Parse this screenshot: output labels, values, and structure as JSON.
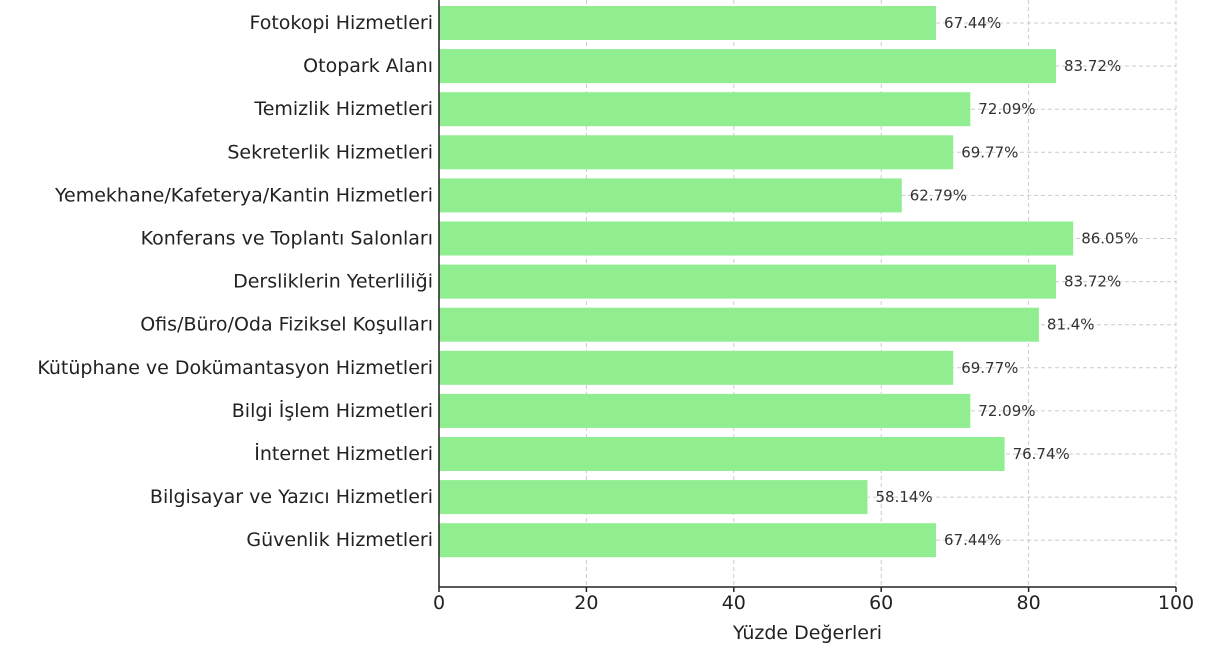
{
  "chart_data": {
    "type": "bar",
    "orientation": "horizontal",
    "categories": [
      "Fotokopi Hizmetleri",
      "Otopark Alanı",
      "Temizlik Hizmetleri",
      "Sekreterlik Hizmetleri",
      "Yemekhane/Kafeterya/Kantin Hizmetleri",
      "Konferans ve Toplantı Salonları",
      "Dersliklerin Yeterliliği",
      "Ofis/Büro/Oda Fiziksel Koşulları",
      "Kütüphane ve Dokümantasyon Hizmetleri",
      "Bilgi İşlem Hizmetleri",
      "İnternet Hizmetleri",
      "Bilgisayar ve Yazıcı Hizmetleri",
      "Güvenlik Hizmetleri"
    ],
    "values": [
      67.44,
      83.72,
      72.09,
      69.77,
      62.79,
      86.05,
      83.72,
      81.4,
      69.77,
      72.09,
      76.74,
      58.14,
      67.44
    ],
    "value_labels": [
      "67.44%",
      "83.72%",
      "72.09%",
      "69.77%",
      "62.79%",
      "86.05%",
      "83.72%",
      "81.4%",
      "69.77%",
      "72.09%",
      "76.74%",
      "58.14%",
      "67.44%"
    ],
    "xlabel": "Yüzde Değerleri",
    "ylabel": "",
    "xlim": [
      0,
      100
    ],
    "xticks": [
      0,
      20,
      40,
      60,
      80,
      100
    ],
    "xtick_labels": [
      "0",
      "20",
      "40",
      "60",
      "80",
      "100"
    ],
    "grid": true,
    "bar_color": "#90ee90"
  }
}
